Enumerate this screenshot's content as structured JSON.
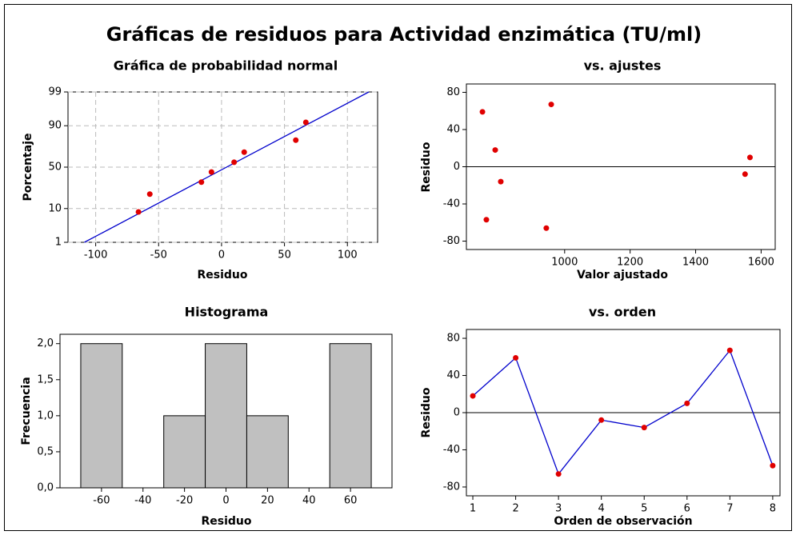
{
  "title": "Gráficas de residuos para Actividad enzimática (TU/ml)",
  "chart_data": [
    {
      "type": "scatter",
      "title": "Gráfica de probabilidad normal",
      "xlabel": "Residuo",
      "ylabel": "Porcentaje",
      "x": [
        -66,
        -57,
        -16,
        -8,
        10,
        18,
        59,
        67
      ],
      "y": [
        8.3,
        20.2,
        32.1,
        44.0,
        56.0,
        67.9,
        79.8,
        91.7
      ],
      "color": "#e00000",
      "fit_line": {
        "x": [
          -109,
          117
        ],
        "y": [
          1,
          99
        ],
        "color": "#0000cc"
      },
      "xlim": [
        -122,
        124
      ],
      "ylim": [
        1,
        99
      ],
      "xticks": [
        -100,
        -50,
        0,
        50,
        100
      ],
      "yticks": [
        1,
        10,
        50,
        90,
        99
      ],
      "yscale": "probability",
      "grid": true
    },
    {
      "type": "scatter",
      "title": "vs. ajustes",
      "xlabel": "Valor ajustado",
      "ylabel": "Residuo",
      "x": [
        788,
        749,
        944,
        1551,
        805,
        1566,
        959,
        761
      ],
      "y": [
        18,
        59,
        -66,
        -8,
        -16,
        10,
        67,
        -57
      ],
      "color": "#e00000",
      "hline": 0,
      "xlim": [
        700,
        1643
      ],
      "ylim": [
        -89,
        89
      ],
      "xticks": [
        1000,
        1200,
        1400,
        1600
      ],
      "yticks": [
        -80,
        -40,
        0,
        40,
        80
      ],
      "grid": false
    },
    {
      "type": "histogram",
      "title": "Histograma",
      "xlabel": "Residuo",
      "ylabel": "Frecuencia",
      "bins": [
        -70,
        -50,
        -30,
        -10,
        10,
        30,
        50,
        70
      ],
      "counts": [
        2,
        0,
        1,
        2,
        1,
        0,
        2
      ],
      "color": "#c0c0c0",
      "xlim": [
        -80,
        80
      ],
      "ylim": [
        0,
        2.13
      ],
      "xticks": [
        -60,
        -40,
        -20,
        0,
        20,
        40,
        60
      ],
      "yticks": [
        {
          "value": 0,
          "label": "0,0"
        },
        {
          "value": 0.5,
          "label": "0,5"
        },
        {
          "value": 1,
          "label": "1,0"
        },
        {
          "value": 1.5,
          "label": "1,5"
        },
        {
          "value": 2,
          "label": "2,0"
        }
      ],
      "grid": false
    },
    {
      "type": "line",
      "title": "vs. orden",
      "xlabel": "Orden de observación",
      "ylabel": "Residuo",
      "x": [
        1,
        2,
        3,
        4,
        5,
        6,
        7,
        8
      ],
      "y": [
        18,
        59,
        -66,
        -8,
        -16,
        10,
        67,
        -57
      ],
      "color": "#0000cc",
      "marker_color": "#e00000",
      "hline": 0,
      "xlim": [
        0.85,
        8.17
      ],
      "ylim": [
        -89.5,
        89.5
      ],
      "xticks": [
        1,
        2,
        3,
        4,
        5,
        6,
        7,
        8
      ],
      "yticks": [
        -80,
        -40,
        0,
        40,
        80
      ],
      "grid": false
    }
  ]
}
